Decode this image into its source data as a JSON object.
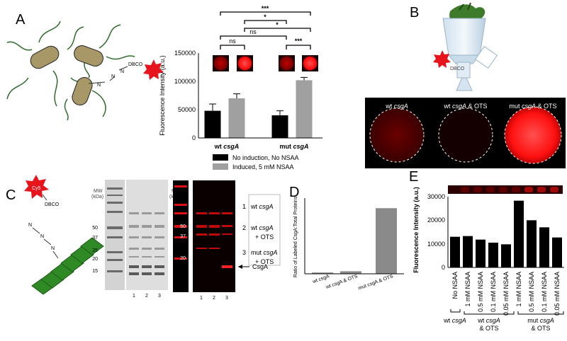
{
  "panels": {
    "a": {
      "letter": "A",
      "dbco": "DBCO",
      "azide_n1": "N",
      "azide_n2": "N",
      "azide_n3": "N",
      "sig": [
        "ns",
        "***",
        "*",
        "ns",
        "*",
        "***"
      ],
      "legend": [
        "No induction, No NSAA",
        "Induced, 5 mM NSAA"
      ],
      "colors": {
        "no_induction": "#000000",
        "induced": "#a0a0a0"
      }
    },
    "b": {
      "letter": "B",
      "dbco": "DBCO",
      "labels": [
        {
          "main": "wt ",
          "ital": "csgA",
          "tail": ""
        },
        {
          "main": "wt ",
          "ital": "csgA",
          "tail": " & OTS"
        },
        {
          "main": "mut ",
          "ital": "csgA",
          "tail": " & OTS"
        }
      ]
    },
    "c": {
      "letter": "C",
      "dye": "Cy5",
      "dbco": "DBCO",
      "mw_header": [
        "MW",
        "(kDa)"
      ],
      "mw_markers": [
        "50",
        "37",
        "25",
        "20",
        "15"
      ],
      "mw_markers_right": [
        "50",
        "37",
        "20"
      ],
      "lanes": [
        "1",
        "2",
        "3"
      ],
      "legend": [
        {
          "num": "1",
          "main": "wt ",
          "ital": "csgA",
          "extra": ""
        },
        {
          "num": "2",
          "main": "wt ",
          "ital": "csgA",
          "extra": "+ OTS"
        },
        {
          "num": "3",
          "main": "mut ",
          "ital": "csgA",
          "extra": "+ OTS"
        }
      ],
      "band_label": "CsgA"
    },
    "d": {
      "letter": "D"
    },
    "e": {
      "letter": "E",
      "groups": [
        {
          "main": "wt ",
          "ital": "csgA",
          "tail": ""
        },
        {
          "main": "wt ",
          "ital": "csgA",
          "tail": "& OTS"
        },
        {
          "main": "mut ",
          "ital": "csgA",
          "tail": "& OTS"
        }
      ]
    }
  },
  "chart_data": [
    {
      "type": "bar",
      "panel": "A",
      "categories": [
        "wt csgA",
        "mut csgA"
      ],
      "series": [
        {
          "name": "No induction, No NSAA",
          "values": [
            48000,
            40000
          ],
          "errors": [
            12000,
            8000
          ]
        },
        {
          "name": "Induced, 5 mM NSAA",
          "values": [
            70000,
            102000
          ],
          "errors": [
            8000,
            5000
          ]
        }
      ],
      "ylabel": "Fluorescence Intensity (a.u.)",
      "yticks": [
        "0",
        "50000",
        "100000",
        "150000"
      ],
      "ylim": [
        0,
        150000
      ]
    },
    {
      "type": "bar",
      "panel": "D",
      "categories": [
        "wt csgA",
        "wt csgA & OTS",
        "mut csgA & OTS"
      ],
      "values": [
        0.005,
        0.01,
        0.26
      ],
      "ylabel": "Ratio of Labeled CsgA:Total Proteins",
      "ylim": [
        0,
        0.3
      ]
    },
    {
      "type": "bar",
      "panel": "E",
      "categories": [
        "No NSAA",
        "1 mM NSAA",
        "0.5 mM NSAA",
        "0.1 mM NSAA",
        "0.05 mM NSAA",
        "1 mM NSAA",
        "0.5 mM NSAA",
        "0.1 mM NSAA",
        "0.05 mM NSAA"
      ],
      "values": [
        13000,
        13300,
        11800,
        10500,
        9800,
        28300,
        20000,
        17000,
        12700
      ],
      "ylabel": "Fluorescence Intensity (a.u.)",
      "yticks": [
        "0",
        "10000",
        "20000",
        "30000"
      ],
      "ylim": [
        0,
        30000
      ]
    }
  ]
}
